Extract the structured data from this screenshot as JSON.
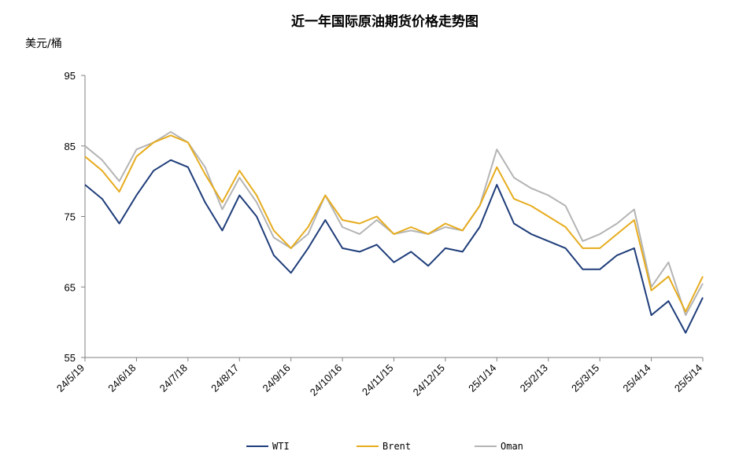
{
  "chart_data": {
    "type": "line",
    "title": "近一年国际原油期货价格走势图",
    "ylabel": "美元/桶",
    "xlabel": "",
    "ylim": [
      55,
      95
    ],
    "yticks": [
      55,
      65,
      75,
      85,
      95
    ],
    "xtick_labels": [
      "24/5/19",
      "24/6/18",
      "24/7/18",
      "24/8/17",
      "24/9/16",
      "24/10/16",
      "24/11/15",
      "24/12/15",
      "25/1/14",
      "25/2/13",
      "25/3/15",
      "25/4/14",
      "25/5/14"
    ],
    "grid": false,
    "legend_position": "bottom",
    "x": [
      "24/5/19",
      "24/5/29",
      "24/6/8",
      "24/6/18",
      "24/6/28",
      "24/7/8",
      "24/7/18",
      "24/7/28",
      "24/8/7",
      "24/8/17",
      "24/8/27",
      "24/9/6",
      "24/9/16",
      "24/9/26",
      "24/10/6",
      "24/10/16",
      "24/10/26",
      "24/11/5",
      "24/11/15",
      "24/11/25",
      "24/12/5",
      "24/12/15",
      "24/12/25",
      "25/1/4",
      "25/1/14",
      "25/1/24",
      "25/2/3",
      "25/2/13",
      "25/2/23",
      "25/3/5",
      "25/3/15",
      "25/3/25",
      "25/4/4",
      "25/4/14",
      "25/4/24",
      "25/5/4",
      "25/5/14"
    ],
    "series": [
      {
        "name": "WTI",
        "color": "#1f3d7a",
        "values": [
          79.5,
          77.5,
          74.0,
          78.0,
          81.5,
          83.0,
          82.0,
          77.0,
          73.0,
          78.0,
          75.0,
          69.5,
          67.0,
          70.5,
          74.5,
          70.5,
          70.0,
          71.0,
          68.5,
          70.0,
          68.0,
          70.5,
          70.0,
          73.5,
          79.5,
          74.0,
          72.5,
          71.5,
          70.5,
          67.5,
          67.5,
          69.5,
          70.5,
          61.0,
          63.0,
          58.5,
          63.5
        ]
      },
      {
        "name": "Brent",
        "color": "#e6ac1e",
        "values": [
          83.5,
          81.5,
          78.5,
          83.5,
          85.5,
          86.5,
          85.5,
          81.0,
          77.0,
          81.5,
          78.0,
          73.0,
          70.5,
          73.5,
          78.0,
          74.5,
          74.0,
          75.0,
          72.5,
          73.5,
          72.5,
          74.0,
          73.0,
          76.5,
          82.0,
          77.5,
          76.5,
          75.0,
          73.5,
          70.5,
          70.5,
          72.5,
          74.5,
          64.5,
          66.5,
          61.5,
          66.5
        ]
      },
      {
        "name": "Oman",
        "color": "#b4b4b4",
        "values": [
          85.0,
          83.0,
          80.0,
          84.5,
          85.5,
          87.0,
          85.5,
          82.0,
          76.0,
          80.5,
          77.0,
          72.0,
          70.5,
          72.5,
          78.0,
          73.5,
          72.5,
          74.5,
          72.5,
          73.0,
          72.5,
          73.5,
          73.0,
          76.5,
          84.5,
          80.5,
          79.0,
          78.0,
          76.5,
          71.5,
          72.5,
          74.0,
          76.0,
          65.0,
          68.5,
          61.0,
          65.5
        ]
      }
    ]
  }
}
